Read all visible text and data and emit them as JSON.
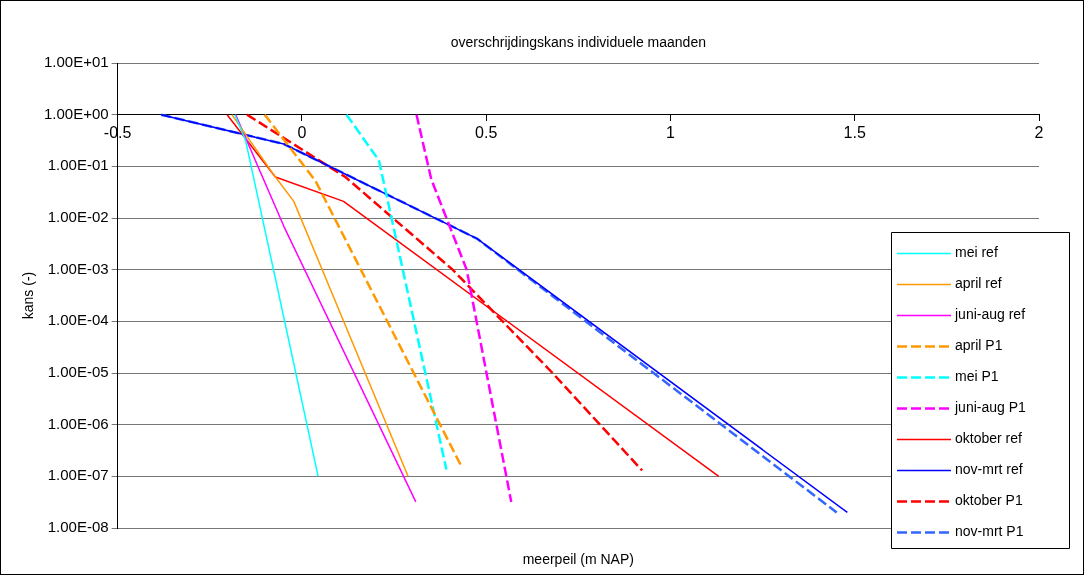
{
  "chart_data": {
    "type": "line",
    "title": "overschrijdingskans individuele maanden",
    "xlabel": "meerpeil (m NAP)",
    "ylabel": "kans (-)",
    "log": "y",
    "grid": "y",
    "legend": "bottom right",
    "marker": "none",
    "xlim": [
      -0.5,
      2
    ],
    "xticks": [
      -0.5,
      0,
      0.5,
      1,
      1.5,
      2
    ],
    "ylim": [
      1e-08,
      10
    ],
    "yticks": [
      {
        "value": 1e-08,
        "label": "1.00E-08"
      },
      {
        "value": 1e-07,
        "label": "1.00E-07"
      },
      {
        "value": 1e-06,
        "label": "1.00E-06"
      },
      {
        "value": 1e-05,
        "label": "1.00E-05"
      },
      {
        "value": 0.0001,
        "label": "1.00E-04"
      },
      {
        "value": 0.001,
        "label": "1.00E-03"
      },
      {
        "value": 0.01,
        "label": "1.00E-02"
      },
      {
        "value": 0.1,
        "label": "1.00E-01"
      },
      {
        "value": 1,
        "label": "1.00E+00"
      },
      {
        "value": 10,
        "label": "1.00E+01"
      }
    ],
    "series": [
      {
        "name": "mei ref",
        "color": "#00ffff",
        "line_style": "solid",
        "x": [
          -0.182,
          -0.153,
          0.044
        ],
        "values": [
          1,
          0.32,
          1e-07
        ]
      },
      {
        "name": "april ref",
        "color": "#ff9900",
        "line_style": "solid",
        "x": [
          -0.19,
          -0.072,
          -0.022,
          0.288
        ],
        "values": [
          1,
          0.062,
          0.021,
          1e-07
        ]
      },
      {
        "name": "juni-aug ref",
        "color": "#ff00ff",
        "line_style": "solid",
        "x": [
          -0.18,
          -0.049,
          0.309
        ],
        "values": [
          1,
          0.0069,
          3.2e-08
        ]
      },
      {
        "name": "april P1",
        "color": "#ff9900",
        "line_style": "dashed",
        "x": [
          -0.101,
          0.037,
          0.432
        ],
        "values": [
          1,
          0.052,
          1.6e-07
        ]
      },
      {
        "name": "mei P1",
        "color": "#00ffff",
        "line_style": "dashed",
        "x": [
          0.121,
          0.209,
          0.392
        ],
        "values": [
          1,
          0.13,
          1.35e-07
        ]
      },
      {
        "name": "juni-aug P1",
        "color": "#ff00ff",
        "line_style": "dashed",
        "x": [
          0.311,
          0.351,
          0.447,
          0.568
        ],
        "values": [
          1,
          0.056,
          0.001,
          3.2e-08
        ]
      },
      {
        "name": "oktober ref",
        "color": "#ff0000",
        "line_style": "solid",
        "x": [
          -0.203,
          -0.072,
          0.113,
          1.131
        ],
        "values": [
          1,
          0.062,
          0.021,
          1e-07
        ]
      },
      {
        "name": "nov-mrt ref",
        "color": "#0000ff",
        "line_style": "solid",
        "x": [
          -0.382,
          -0.049,
          0.475,
          1.48
        ],
        "values": [
          1,
          0.27,
          0.004,
          2e-08
        ]
      },
      {
        "name": "oktober P1",
        "color": "#ff0000",
        "line_style": "dashed",
        "x": [
          -0.149,
          0.118,
          0.409,
          0.68,
          0.923
        ],
        "values": [
          1,
          0.062,
          0.001,
          1e-05,
          1.3e-07
        ]
      },
      {
        "name": "nov-mrt P1",
        "color": "#3366ff",
        "line_style": "dashed",
        "x": [
          -0.382,
          -0.049,
          0.475,
          1.451
        ],
        "values": [
          1,
          0.27,
          0.004,
          2e-08
        ]
      }
    ]
  }
}
